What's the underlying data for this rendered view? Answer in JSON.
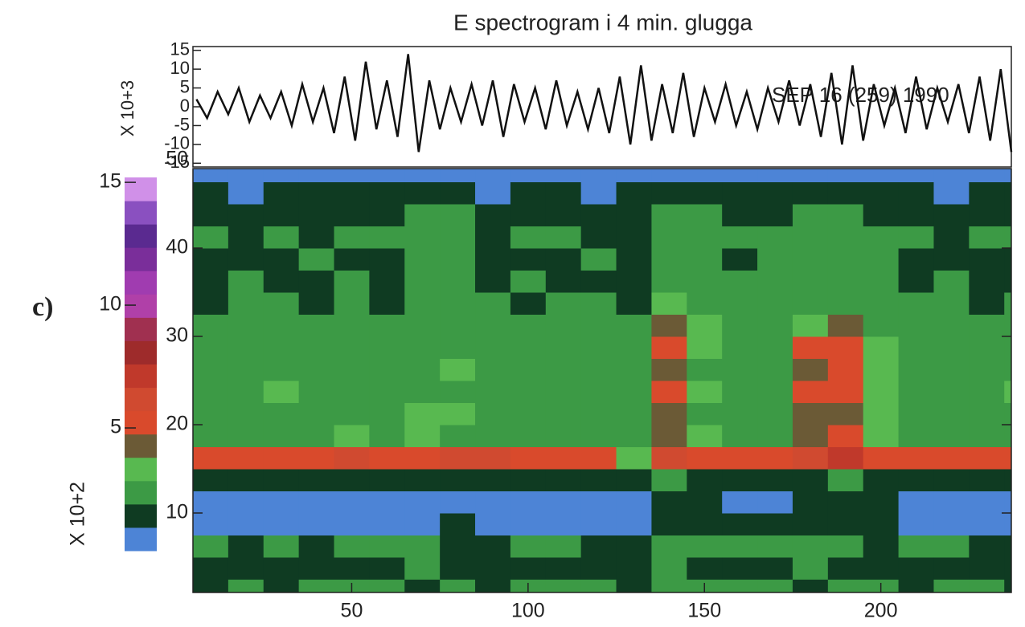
{
  "panel_label": "c)",
  "chart_data": [
    {
      "type": "line",
      "title": "E spectrogram i 4 min. glugga",
      "ylabel": "X 10+3",
      "annotation": "SEP 16 (259) 1990",
      "color": "#111111",
      "x": [
        6,
        9,
        12,
        15,
        18,
        21,
        24,
        27,
        30,
        33,
        36,
        39,
        42,
        45,
        48,
        51,
        54,
        57,
        60,
        63,
        66,
        69,
        72,
        75,
        78,
        81,
        84,
        87,
        90,
        93,
        96,
        99,
        102,
        105,
        108,
        111,
        114,
        117,
        120,
        123,
        126,
        129,
        132,
        135,
        138,
        141,
        144,
        147,
        150,
        153,
        156,
        159,
        162,
        165,
        168,
        171,
        174,
        177,
        180,
        183,
        186,
        189,
        192,
        195,
        198,
        201,
        204,
        207,
        210,
        213,
        216,
        219,
        222,
        225,
        228,
        231,
        234,
        237
      ],
      "values": [
        2,
        -3,
        4,
        -2,
        5,
        -4,
        3,
        -3,
        4,
        -5,
        6,
        -4,
        5,
        -7,
        8,
        -9,
        12,
        -6,
        7,
        -8,
        14,
        -12,
        7,
        -6,
        5,
        -4,
        6,
        -5,
        7,
        -8,
        6,
        -4,
        5,
        -6,
        7,
        -5,
        4,
        -6,
        5,
        -7,
        8,
        -10,
        11,
        -9,
        6,
        -7,
        9,
        -8,
        5,
        -4,
        6,
        -5,
        4,
        -6,
        5,
        -4,
        7,
        -5,
        6,
        -8,
        9,
        -10,
        11,
        -9,
        6,
        -5,
        5,
        -7,
        8,
        -6,
        5,
        -4,
        6,
        -7,
        8,
        -9,
        10,
        -12
      ],
      "xlim": [
        5,
        237
      ],
      "ylim": [
        -16,
        16
      ],
      "yticks": [
        -15,
        -10,
        -5,
        0,
        5,
        10,
        15
      ]
    },
    {
      "type": "heatmap",
      "x": [
        10,
        20,
        30,
        40,
        50,
        60,
        70,
        80,
        90,
        100,
        110,
        120,
        130,
        140,
        150,
        160,
        170,
        180,
        190,
        200,
        210,
        220,
        230,
        240
      ],
      "y": [
        1.25,
        3.75,
        6.25,
        8.75,
        11.25,
        13.75,
        16.25,
        18.75,
        21.25,
        23.75,
        26.25,
        28.75,
        31.25,
        33.75,
        36.25,
        38.75,
        41.25,
        43.75,
        46.25,
        48.75
      ],
      "values": [
        [
          1.8,
          2.2,
          1.7,
          2.1,
          1.9,
          2.3,
          1.8,
          2.0,
          1.7,
          2.2,
          1.9,
          2.1,
          1.8,
          2.3,
          2.0,
          1.9,
          2.2,
          1.8,
          2.1,
          2.0,
          1.7,
          2.2,
          1.9,
          1.8
        ],
        [
          1.5,
          1.7,
          1.4,
          1.8,
          1.6,
          1.5,
          1.9,
          1.6,
          1.4,
          1.7,
          1.5,
          1.8,
          1.6,
          1.9,
          1.7,
          1.5,
          1.8,
          1.9,
          1.6,
          1.7,
          1.5,
          1.8,
          1.6,
          1.5
        ],
        [
          2.0,
          1.8,
          2.1,
          1.7,
          1.9,
          2.2,
          2.0,
          1.8,
          1.7,
          2.0,
          1.9,
          1.8,
          1.7,
          2.2,
          2.1,
          1.9,
          2.0,
          2.3,
          2.1,
          1.8,
          1.9,
          2.0,
          1.7,
          1.8
        ],
        [
          0.7,
          0.9,
          0.8,
          0.6,
          0.9,
          0.8,
          0.9,
          1.0,
          0.7,
          0.8,
          0.9,
          0.8,
          0.9,
          1.3,
          1.2,
          1.0,
          1.1,
          1.4,
          1.3,
          1.2,
          0.8,
          0.9,
          0.7,
          0.8
        ],
        [
          0.6,
          0.7,
          0.8,
          0.6,
          0.7,
          0.9,
          0.8,
          0.7,
          0.6,
          0.8,
          0.7,
          0.6,
          0.8,
          1.2,
          1.1,
          0.9,
          0.8,
          1.3,
          1.2,
          1.0,
          0.7,
          0.8,
          0.6,
          0.7
        ],
        [
          1.3,
          1.5,
          1.2,
          1.4,
          1.6,
          1.3,
          1.5,
          1.4,
          1.2,
          1.3,
          1.5,
          1.4,
          1.2,
          2.0,
          1.6,
          1.5,
          1.4,
          1.8,
          1.9,
          1.5,
          1.3,
          1.4,
          1.5,
          1.3
        ],
        [
          5.2,
          5.6,
          5.0,
          5.4,
          5.8,
          5.3,
          5.5,
          5.7,
          6.2,
          5.4,
          5.6,
          5.3,
          3.2,
          6.0,
          5.5,
          5.2,
          5.4,
          6.4,
          6.8,
          5.6,
          5.3,
          5.5,
          5.2,
          5.4
        ],
        [
          2.4,
          2.8,
          2.2,
          2.6,
          2.9,
          2.5,
          3.0,
          2.7,
          2.4,
          2.6,
          2.3,
          2.8,
          2.5,
          4.6,
          2.9,
          2.6,
          2.7,
          4.2,
          4.8,
          3.2,
          2.5,
          2.3,
          2.6,
          2.4
        ],
        [
          2.2,
          2.5,
          2.3,
          2.0,
          2.6,
          2.4,
          2.9,
          3.1,
          2.3,
          2.5,
          2.1,
          2.4,
          2.2,
          3.8,
          2.8,
          2.4,
          2.6,
          4.4,
          4.0,
          3.0,
          2.4,
          2.2,
          2.5,
          2.3
        ],
        [
          2.3,
          2.6,
          2.9,
          2.4,
          2.7,
          2.5,
          2.8,
          2.6,
          2.4,
          2.7,
          2.3,
          2.5,
          2.4,
          5.2,
          3.0,
          2.6,
          2.8,
          5.4,
          5.6,
          3.4,
          2.6,
          2.4,
          2.3,
          2.9
        ],
        [
          2.1,
          2.4,
          2.2,
          2.5,
          2.0,
          2.3,
          2.7,
          2.9,
          2.2,
          2.4,
          2.1,
          2.3,
          2.0,
          4.4,
          2.8,
          2.3,
          2.5,
          4.6,
          5.0,
          3.0,
          2.2,
          2.1,
          2.4,
          2.2
        ],
        [
          2.2,
          2.5,
          2.3,
          2.1,
          2.4,
          2.6,
          2.8,
          2.7,
          2.3,
          2.4,
          2.2,
          2.5,
          2.1,
          5.3,
          3.1,
          2.4,
          2.6,
          4.8,
          5.4,
          2.9,
          2.3,
          2.2,
          2.4,
          2.1
        ],
        [
          2.3,
          2.0,
          2.2,
          1.9,
          2.1,
          2.3,
          2.6,
          2.5,
          2.1,
          2.0,
          2.2,
          1.9,
          2.1,
          4.2,
          2.9,
          2.2,
          2.4,
          3.4,
          4.0,
          2.6,
          2.0,
          2.2,
          1.9,
          2.1
        ],
        [
          1.8,
          2.0,
          1.9,
          1.7,
          2.0,
          1.8,
          2.5,
          2.4,
          1.9,
          1.8,
          2.0,
          1.9,
          1.8,
          2.9,
          2.6,
          2.0,
          2.2,
          2.8,
          2.7,
          2.3,
          1.9,
          2.0,
          1.8,
          1.9
        ],
        [
          1.7,
          1.9,
          1.8,
          1.6,
          1.9,
          1.7,
          2.4,
          2.3,
          1.8,
          1.9,
          1.7,
          1.8,
          1.7,
          2.7,
          2.4,
          1.9,
          2.0,
          2.6,
          2.5,
          2.2,
          1.8,
          1.9,
          1.7,
          1.8
        ],
        [
          1.6,
          1.8,
          1.7,
          1.9,
          1.6,
          1.8,
          2.2,
          2.4,
          1.7,
          1.8,
          1.6,
          1.9,
          1.7,
          2.6,
          2.3,
          1.8,
          1.9,
          2.5,
          2.4,
          2.1,
          1.7,
          1.8,
          1.6,
          1.7
        ],
        [
          1.9,
          1.7,
          2.1,
          1.8,
          2.0,
          1.9,
          2.3,
          2.2,
          1.8,
          2.1,
          1.9,
          1.7,
          1.8,
          2.5,
          2.2,
          1.9,
          2.0,
          2.4,
          2.6,
          2.0,
          1.9,
          1.8,
          2.0,
          1.9
        ],
        [
          1.5,
          1.7,
          1.6,
          1.8,
          1.5,
          1.6,
          1.9,
          2.0,
          1.7,
          1.6,
          1.8,
          1.5,
          1.6,
          2.3,
          2.0,
          1.7,
          1.6,
          2.2,
          2.1,
          1.8,
          1.6,
          1.7,
          1.5,
          1.6
        ],
        [
          1.0,
          0.9,
          1.1,
          1.0,
          1.2,
          1.0,
          1.1,
          1.2,
          0.9,
          1.1,
          1.0,
          0.9,
          1.0,
          1.4,
          1.2,
          1.0,
          1.1,
          1.3,
          1.2,
          1.1,
          1.0,
          0.9,
          1.1,
          1.0
        ],
        [
          0.4,
          0.3,
          0.4,
          0.5,
          0.4,
          0.3,
          0.4,
          0.5,
          0.4,
          0.4,
          0.3,
          0.5,
          0.4,
          0.6,
          0.4,
          0.3,
          0.4,
          0.5,
          0.4,
          0.3,
          0.4,
          0.5,
          0.4,
          0.3
        ]
      ],
      "xlim": [
        5,
        237
      ],
      "ylim": [
        1,
        49
      ],
      "xticks": [
        50,
        100,
        150,
        200
      ],
      "yticks": [
        10,
        20,
        30,
        40,
        50
      ],
      "zlim": [
        0,
        15.2
      ],
      "zticks": [
        5,
        10,
        15
      ],
      "zlabel": "X 10+2",
      "colormap": [
        "#4d84d6",
        "#0f3b22",
        "#3c9a45",
        "#58b950",
        "#6b5a36",
        "#d94a2c",
        "#d04a30",
        "#c0392b",
        "#9e2b2b",
        "#a03050",
        "#b040a8",
        "#a03cb0",
        "#7a2e9a",
        "#5a2a90",
        "#8a50c0",
        "#d090e8"
      ]
    }
  ]
}
